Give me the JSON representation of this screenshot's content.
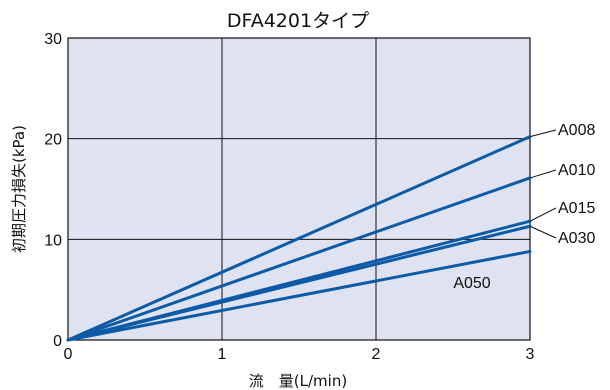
{
  "chart_data": {
    "type": "line",
    "title": "DFA4201タイプ",
    "xlabel": "流　量(L/min)",
    "ylabel": "初期圧力損失(kPa)",
    "xlim": [
      0,
      3
    ],
    "ylim": [
      0,
      30
    ],
    "xticks": [
      "0",
      "1",
      "2",
      "3"
    ],
    "yticks": [
      "0",
      "10",
      "20",
      "30"
    ],
    "grid": true,
    "colors": {
      "plot_bg": "#dfe3f1",
      "line": "#0d5aa7",
      "grid": "#111111"
    },
    "series": [
      {
        "name": "A008",
        "x": [
          0,
          3
        ],
        "y": [
          0,
          20.2
        ]
      },
      {
        "name": "A010",
        "x": [
          0,
          3
        ],
        "y": [
          0,
          16.1
        ]
      },
      {
        "name": "A015",
        "x": [
          0,
          3
        ],
        "y": [
          0,
          11.8
        ]
      },
      {
        "name": "A030",
        "x": [
          0,
          3
        ],
        "y": [
          0,
          11.3
        ]
      },
      {
        "name": "A050",
        "x": [
          0,
          3
        ],
        "y": [
          0,
          8.8
        ]
      }
    ]
  }
}
